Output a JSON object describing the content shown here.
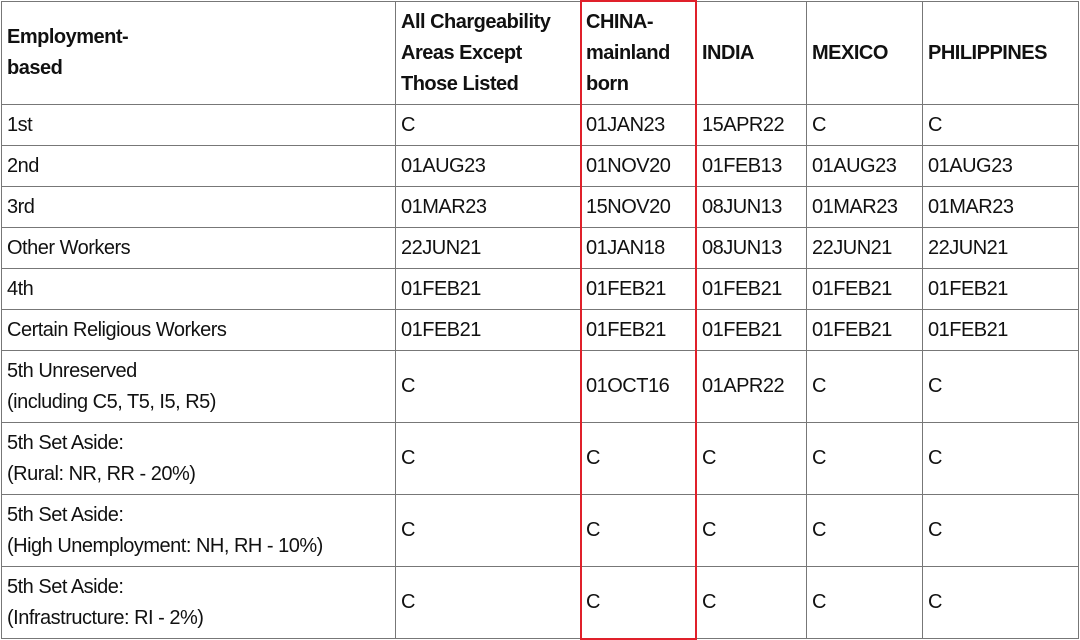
{
  "table": {
    "headers": [
      "Employment-\nbased",
      "All Chargeability Areas Except Those Listed",
      "CHINA-mainland born",
      "INDIA",
      "MEXICO",
      "PHILIPPINES"
    ],
    "rows": [
      [
        "1st",
        "C",
        "01JAN23",
        "15APR22",
        "C",
        "C"
      ],
      [
        "2nd",
        "01AUG23",
        "01NOV20",
        "01FEB13",
        "01AUG23",
        "01AUG23"
      ],
      [
        "3rd",
        "01MAR23",
        "15NOV20",
        "08JUN13",
        "01MAR23",
        "01MAR23"
      ],
      [
        "Other Workers",
        "22JUN21",
        "01JAN18",
        "08JUN13",
        "22JUN21",
        "22JUN21"
      ],
      [
        "4th",
        "01FEB21",
        "01FEB21",
        "01FEB21",
        "01FEB21",
        "01FEB21"
      ],
      [
        "Certain Religious Workers",
        "01FEB21",
        "01FEB21",
        "01FEB21",
        "01FEB21",
        "01FEB21"
      ],
      [
        "5th Unreserved (including C5, T5, I5, R5)",
        "C",
        "01OCT16",
        "01APR22",
        "C",
        "C"
      ],
      [
        "5th Set Aside: (Rural: NR, RR - 20%)",
        "C",
        "C",
        "C",
        "C",
        "C"
      ],
      [
        "5th Set Aside: (High Unemployment: NH, RH - 10%)",
        "C",
        "C",
        "C",
        "C",
        "C"
      ],
      [
        "5th Set Aside: (Infrastructure: RI - 2%)",
        "C",
        "C",
        "C",
        "C",
        "C"
      ]
    ]
  },
  "highlight": {
    "column": "CHINA-mainland born",
    "color": "#e0202a"
  }
}
